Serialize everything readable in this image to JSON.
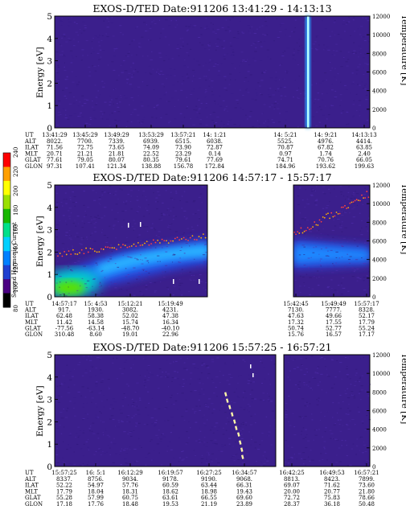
{
  "colors": {
    "background": "#3a1f8c",
    "colorbar": [
      "#000000",
      "#4b0082",
      "#1f3fd0",
      "#0080ff",
      "#00d0ff",
      "#00e08a",
      "#18b800",
      "#9be000",
      "#ffff00",
      "#ffa000",
      "#ff0000"
    ]
  },
  "colorbar": {
    "label": "Second Harmonic Current",
    "ticks": [
      "80",
      "100",
      "120",
      "140",
      "160",
      "180",
      "200",
      "220",
      "240"
    ]
  },
  "row_labels": [
    "UT",
    "ALT",
    "ILAT",
    "MLT",
    "GLAT",
    "GLON"
  ],
  "chart_data": [
    {
      "type": "heatmap",
      "title": "EXOS-D/TED   Date:911206   13:41:29 - 14:13:13",
      "ylabel": "Energy [eV]",
      "y2label": "Temperature [K]",
      "ylim": [
        0,
        5
      ],
      "y2lim": [
        0,
        12000
      ],
      "yticks": [
        "0",
        "1",
        "2",
        "3",
        "4",
        "5"
      ],
      "y2ticks": [
        "0",
        "2000",
        "4000",
        "6000",
        "8000",
        "10000",
        "12000"
      ],
      "data_gaps": [],
      "features": [
        "uniform background",
        "vertical bright stripe near 14:21"
      ],
      "orbit_table": {
        "columns": [
          {
            "UT": "13:41:29",
            "ALT": "8022.",
            "ILAT": "71.56",
            "MLT": "20.71",
            "GLAT": "77.61",
            "GLON": "97.31"
          },
          {
            "UT": "13:45:29",
            "ALT": "7700.",
            "ILAT": "72.75",
            "MLT": "21.21",
            "GLAT": "79.05",
            "GLON": "107.41"
          },
          {
            "UT": "13:49:29",
            "ALT": "7339.",
            "ILAT": "73.65",
            "MLT": "21.81",
            "GLAT": "80.07",
            "GLON": "121.34"
          },
          {
            "UT": "13:53:29",
            "ALT": "6939.",
            "ILAT": "74.09",
            "MLT": "22.52",
            "GLAT": "80.35",
            "GLON": "138.88"
          },
          {
            "UT": "13:57:21",
            "ALT": "6515.",
            "ILAT": "73.90",
            "MLT": "23.29",
            "GLAT": "79.61",
            "GLON": "156.78"
          },
          {
            "UT": "14: 1:21",
            "ALT": "6038.",
            "ILAT": "72.87",
            "MLT": "0.14",
            "GLAT": "77.69",
            "GLON": "172.84"
          },
          {
            "UT": "14: 5:21",
            "ALT": "5525.",
            "ILAT": "70.87",
            "MLT": "0.97",
            "GLAT": "74.71",
            "GLON": "184.96"
          },
          {
            "UT": "14: 9:21",
            "ALT": "4976.",
            "ILAT": "67.82",
            "MLT": "1.74",
            "GLAT": "70.76",
            "GLON": "193.62"
          },
          {
            "UT": "14:13:13",
            "ALT": "4414.",
            "ILAT": "63.85",
            "MLT": "2.40",
            "GLAT": "66.05",
            "GLON": "199.63"
          }
        ]
      }
    },
    {
      "type": "heatmap",
      "title": "EXOS-D/TED   Date:911206   14:57:17 - 15:57:17",
      "ylabel": "Energy [eV]",
      "y2label": "Temperature [K]",
      "ylim": [
        0,
        5
      ],
      "y2lim": [
        0,
        12000
      ],
      "yticks": [
        "0",
        "1",
        "2",
        "3",
        "4",
        "5"
      ],
      "y2ticks": [
        "0",
        "2000",
        "4000",
        "6000",
        "8000",
        "10000",
        "12000"
      ],
      "data_gaps": [
        "15:22 - 15:42"
      ],
      "features": [
        "high intensity below 1 eV at start",
        "band near 1.5-2 eV",
        "scattered temperature points rising from ~4500 K to ~10500 K"
      ],
      "orbit_table": {
        "columns": [
          {
            "UT": "14:57:17",
            "ALT": "917.",
            "ILAT": "62.48",
            "MLT": "11.42",
            "GLAT": "-77.56",
            "GLON": "310.48"
          },
          {
            "UT": "15: 4:53",
            "ALT": "1930.",
            "ILAT": "58.38",
            "MLT": "14.58",
            "GLAT": "-63.14",
            "GLON": "8.60"
          },
          {
            "UT": "15:12:21",
            "ALT": "3082.",
            "ILAT": "52.02",
            "MLT": "15.74",
            "GLAT": "-48.70",
            "GLON": "19.01"
          },
          {
            "UT": "15:19:49",
            "ALT": "4231.",
            "ILAT": "47.38",
            "MLT": "16.34",
            "GLAT": "-40.10",
            "GLON": "22.96"
          },
          {
            "UT": "15:42:45",
            "ALT": "7130.",
            "ILAT": "47.63",
            "MLT": "17.32",
            "GLAT": "50.74",
            "GLON": "15.76"
          },
          {
            "UT": "15:49:49",
            "ALT": "7777.",
            "ILAT": "49.66",
            "MLT": "17.55",
            "GLAT": "52.77",
            "GLON": "16.57"
          },
          {
            "UT": "15:57:17",
            "ALT": "8328.",
            "ILAT": "52.17",
            "MLT": "17.79",
            "GLAT": "55.24",
            "GLON": "17.17"
          }
        ]
      }
    },
    {
      "type": "heatmap",
      "title": "EXOS-D/TED   Date:911206   15:57:25 - 16:57:21",
      "ylabel": "Energy [eV]",
      "y2label": "Temperature [K]",
      "ylim": [
        0,
        5
      ],
      "y2lim": [
        0,
        12000
      ],
      "yticks": [
        "0",
        "1",
        "2",
        "3",
        "4",
        "5"
      ],
      "y2ticks": [
        "0",
        "2000",
        "4000",
        "6000",
        "8000",
        "10000",
        "12000"
      ],
      "data_gaps": [
        "16:38 - 16:40"
      ],
      "features": [
        "uniform background",
        "diagonal streak near 16:31-16:33"
      ],
      "orbit_table": {
        "columns": [
          {
            "UT": "15:57:25",
            "ALT": "8337.",
            "ILAT": "52.22",
            "MLT": "17.79",
            "GLAT": "55.28",
            "GLON": "17.18"
          },
          {
            "UT": "16: 5:1",
            "ALT": "8756.",
            "ILAT": "54.97",
            "MLT": "18.04",
            "GLAT": "57.99",
            "GLON": "17.76"
          },
          {
            "UT": "16:12:29",
            "ALT": "9034.",
            "ILAT": "57.76",
            "MLT": "18.31",
            "GLAT": "60.75",
            "GLON": "18.48"
          },
          {
            "UT": "16:19:57",
            "ALT": "9178.",
            "ILAT": "60.59",
            "MLT": "18.62",
            "GLAT": "63.61",
            "GLON": "19.53"
          },
          {
            "UT": "16:27:25",
            "ALT": "9190.",
            "ILAT": "63.44",
            "MLT": "18.98",
            "GLAT": "66.55",
            "GLON": "21.19"
          },
          {
            "UT": "16:34:57",
            "ALT": "9068.",
            "ILAT": "66.31",
            "MLT": "19.43",
            "GLAT": "69.60",
            "GLON": "23.89"
          },
          {
            "UT": "16:42:25",
            "ALT": "8813.",
            "ILAT": "69.07",
            "MLT": "20.00",
            "GLAT": "72.72",
            "GLON": "28.37"
          },
          {
            "UT": "16:49:53",
            "ALT": "8423.",
            "ILAT": "71.62",
            "MLT": "20.77",
            "GLAT": "75.83",
            "GLON": "36.18"
          },
          {
            "UT": "16:57:21",
            "ALT": "7899.",
            "ILAT": "73.60",
            "MLT": "21.80",
            "GLAT": "78.66",
            "GLON": "50.48"
          }
        ]
      }
    }
  ]
}
